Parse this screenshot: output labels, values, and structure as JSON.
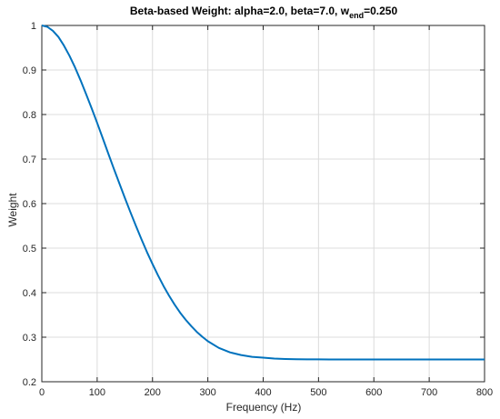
{
  "chart_data": {
    "type": "line",
    "title": "Beta-based Weight: alpha=2.0, beta=7.0, w",
    "title_sub": "end",
    "title_tail": "=0.250",
    "xlabel": "Frequency (Hz)",
    "ylabel": "Weight",
    "xlim": [
      0,
      800
    ],
    "ylim": [
      0.2,
      1.0
    ],
    "xticks": [
      "0",
      "100",
      "200",
      "300",
      "400",
      "500",
      "600",
      "700",
      "800"
    ],
    "yticks": [
      "0.2",
      "0.3",
      "0.4",
      "0.5",
      "0.6",
      "0.7",
      "0.8",
      "0.9",
      "1"
    ],
    "grid": true,
    "line_color": "#0072BD",
    "series": [
      {
        "x": [
          0,
          10,
          20,
          30,
          40,
          50,
          60,
          70,
          80,
          90,
          100,
          110,
          120,
          130,
          140,
          150,
          160,
          170,
          180,
          190,
          200,
          210,
          220,
          230,
          240,
          250,
          260,
          270,
          280,
          290,
          300,
          320,
          340,
          360,
          380,
          400,
          420,
          440,
          460,
          480,
          500,
          520,
          540,
          560,
          580,
          600,
          650,
          700,
          750,
          800
        ],
        "values": [
          1.0,
          0.997,
          0.988,
          0.974,
          0.955,
          0.932,
          0.906,
          0.877,
          0.846,
          0.814,
          0.781,
          0.747,
          0.713,
          0.679,
          0.646,
          0.613,
          0.581,
          0.55,
          0.52,
          0.491,
          0.464,
          0.439,
          0.415,
          0.393,
          0.373,
          0.355,
          0.339,
          0.325,
          0.312,
          0.301,
          0.291,
          0.276,
          0.266,
          0.26,
          0.256,
          0.254,
          0.252,
          0.251,
          0.2505,
          0.2503,
          0.2502,
          0.2501,
          0.25,
          0.25,
          0.25,
          0.25,
          0.25,
          0.25,
          0.25,
          0.25
        ]
      }
    ]
  }
}
